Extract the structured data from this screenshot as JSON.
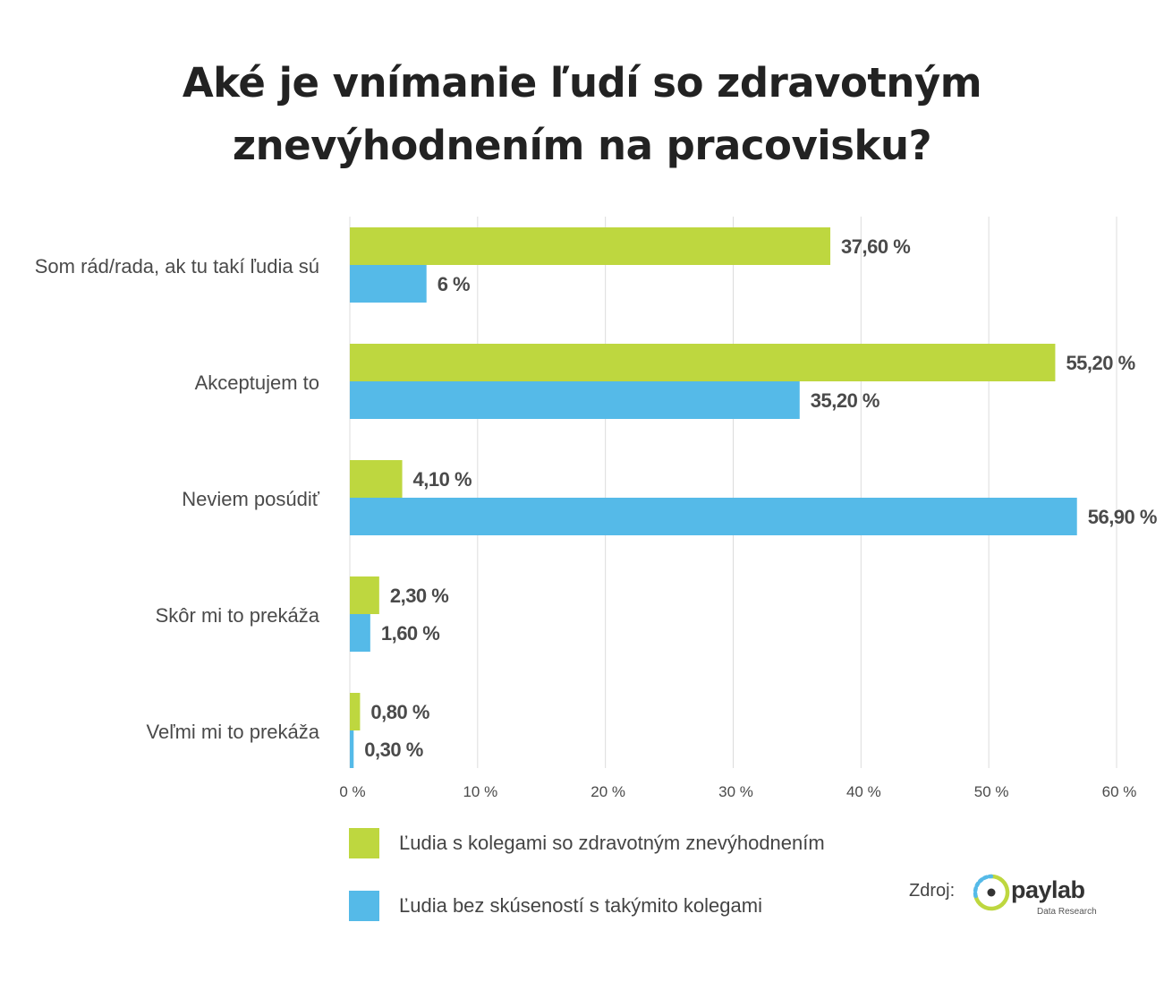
{
  "title": {
    "line1": "Aké je vnímanie ľudí so zdravotným",
    "line2": "znevýhodnením na pracovisku?"
  },
  "colors": {
    "green": "#bed73f",
    "blue": "#55bae8",
    "grid": "#dcdcdc",
    "label_text": "#4a4a4a"
  },
  "chart_data": {
    "type": "bar",
    "orientation": "horizontal",
    "title": "Aké je vnímanie ľudí so zdravotným znevýhodnením na pracovisku?",
    "categories": [
      "Som rád/rada, ak tu takí ľudia sú",
      "Akceptujem to",
      "Neviem posúdiť",
      "Skôr mi to prekáža",
      "Veľmi mi to prekáža"
    ],
    "series": [
      {
        "name": "Ľudia s kolegami so zdravotným znevýhodnením",
        "color": "#bed73f",
        "values": [
          37.6,
          55.2,
          4.1,
          2.3,
          0.8
        ],
        "labels": [
          "37,60 %",
          "55,20 %",
          "4,10 %",
          "2,30 %",
          "0,80 %"
        ]
      },
      {
        "name": "Ľudia bez skúseností s takýmito kolegami",
        "color": "#55bae8",
        "values": [
          6,
          35.2,
          56.9,
          1.6,
          0.3
        ],
        "labels": [
          "6 %",
          "35,20 %",
          "56,90 %",
          "1,60 %",
          "0,30 %"
        ]
      }
    ],
    "xlim": [
      0,
      60
    ],
    "xticks": [
      0,
      10,
      20,
      30,
      40,
      50,
      60
    ],
    "xtick_labels": [
      "0 %",
      "10 %",
      "20 %",
      "30 %",
      "40 %",
      "50 %",
      "60 %"
    ],
    "grid": true,
    "legend_position": "bottom"
  },
  "source": {
    "label": "Zdroj:",
    "brand": "paylab",
    "tagline": "Data Research"
  }
}
